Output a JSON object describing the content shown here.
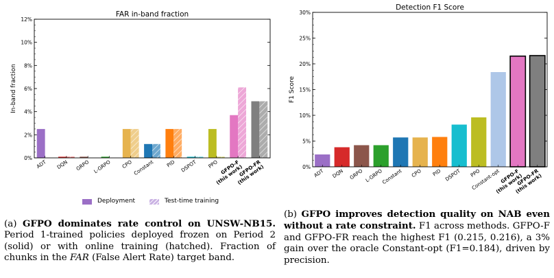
{
  "chart_data": [
    {
      "type": "bar",
      "title": "FAR in-band fraction",
      "ylabel": "In-band fraction",
      "xlabel": "",
      "ylim": [
        0,
        12
      ],
      "yticks": [
        0,
        2,
        4,
        6,
        8,
        10,
        12
      ],
      "ytick_suffix": "%",
      "categories": [
        "ADT",
        "DQN",
        "GRPO",
        "L-GRPO",
        "CPO",
        "Constant",
        "PID",
        "DSPOT",
        "PPO",
        "GFPO-F (this work)",
        "GFPO-FR (this work)"
      ],
      "bold_categories": [
        "GFPO-F (this work)",
        "GFPO-FR (this work)"
      ],
      "series": [
        {
          "name": "Deployment",
          "values": [
            2.5,
            0.1,
            0.1,
            0.1,
            2.5,
            1.2,
            2.5,
            0.1,
            2.5,
            3.7,
            4.9
          ]
        },
        {
          "name": "Test-time training",
          "values": [
            0.0,
            0.1,
            0.0,
            0.0,
            2.5,
            1.2,
            2.5,
            0.1,
            0.1,
            6.1,
            4.9
          ]
        }
      ],
      "legend_position": "bottom",
      "grid": false
    },
    {
      "type": "bar",
      "title": "Detection F1 Score",
      "ylabel": "F1 Score",
      "xlabel": "",
      "ylim": [
        0,
        30
      ],
      "yticks": [
        0,
        5,
        10,
        15,
        20,
        25,
        30
      ],
      "ytick_suffix": "%",
      "categories": [
        "ADT",
        "DQN",
        "GRPO",
        "L-GRPO",
        "Constant",
        "CPO",
        "PID",
        "DSPOT",
        "PPO",
        "Constant-opt",
        "GFPO-F (this work)",
        "GFPO-FR (this work)"
      ],
      "bold_categories": [
        "GFPO-F (this work)",
        "GFPO-FR (this work)"
      ],
      "values": [
        2.4,
        3.8,
        4.2,
        4.2,
        5.7,
        5.7,
        5.8,
        8.2,
        9.6,
        18.4,
        21.5,
        21.6
      ],
      "grid": false
    }
  ],
  "colors": {
    "ADT": "#9b6fc6",
    "DQN": "#d62a2a",
    "GRPO": "#8c564b",
    "L-GRPO": "#2ca02c",
    "Constant": "#1f77b4",
    "CPO": "#e6b34e",
    "PID": "#ff7f0e",
    "DSPOT": "#17becf",
    "PPO": "#bcbd22",
    "Constant-opt": "#aec7e8",
    "GFPO-F (this work)": "#e377c2",
    "GFPO-FR (this work)": "#7f7f7f",
    "legend_deployment": "#9b6fc6",
    "legend_ttt": "#c9b1e3"
  },
  "legend": {
    "deployment": "Deployment",
    "ttt": "Test-time training"
  },
  "captions": {
    "a_prefix": "(a) ",
    "a_bold": "GFPO dominates rate control on UNSW-NB15.",
    "a_text1": " Period 1-trained policies deployed frozen on Period 2 (solid) or with online training (hatched). Fraction of chunks in the ",
    "a_italic": "FAR",
    "a_text2": " (False Alert Rate) target band.",
    "b_prefix": "(b) ",
    "b_bold": "GFPO improves detection quality on NAB even without a rate constraint.",
    "b_text": " F1 across methods. GFPO-F and GFPO-FR reach the highest F1 (0.215, 0.216), a 3% gain over the oracle Constant-opt (F1=0.184), driven by precision."
  }
}
